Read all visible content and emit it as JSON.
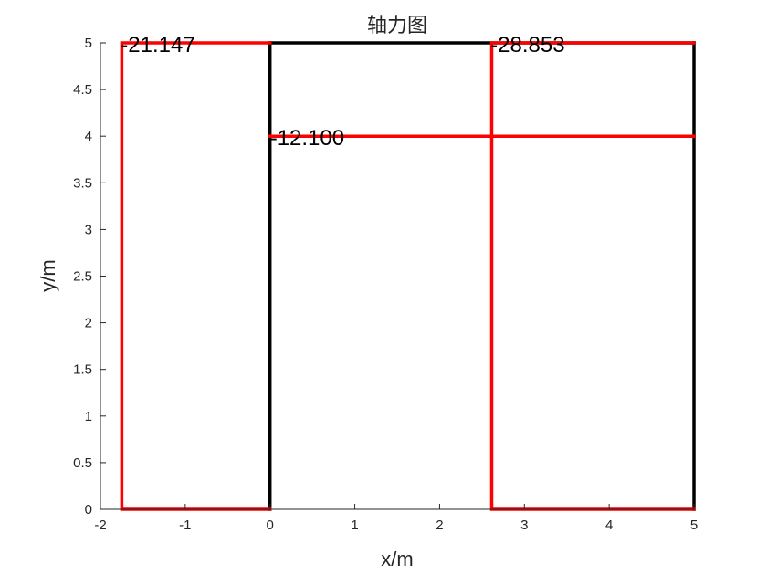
{
  "chart_data": {
    "type": "line",
    "title": "轴力图",
    "xlabel": "x/m",
    "ylabel": "y/m",
    "xlim": [
      -2,
      5
    ],
    "ylim": [
      0,
      5
    ],
    "xticks": [
      -2,
      -1,
      0,
      1,
      2,
      3,
      4,
      5
    ],
    "xtick_labels": [
      "-2",
      "-1",
      "0",
      "1",
      "2",
      "3",
      "4",
      "5"
    ],
    "yticks": [
      0,
      0.5,
      1,
      1.5,
      2,
      2.5,
      3,
      3.5,
      4,
      4.5,
      5
    ],
    "ytick_labels": [
      "0",
      "0.5",
      "1",
      "1.5",
      "2",
      "2.5",
      "3",
      "3.5",
      "4",
      "4.5",
      "5"
    ],
    "grid": false,
    "colors": {
      "frame": "#000000",
      "diagram": "#ff0000"
    },
    "series": [
      {
        "color": "#000000",
        "x": [
          0,
          0
        ],
        "y": [
          0,
          5
        ]
      },
      {
        "color": "#000000",
        "x": [
          0,
          5
        ],
        "y": [
          5,
          5
        ]
      },
      {
        "color": "#000000",
        "x": [
          5,
          5
        ],
        "y": [
          0,
          5
        ]
      },
      {
        "color": "#000000",
        "x": [
          0,
          5
        ],
        "y": [
          4,
          4
        ]
      },
      {
        "color": "#ff0000",
        "x": [
          0,
          -1.748,
          -1.748,
          0
        ],
        "y": [
          0,
          0,
          5,
          5
        ]
      },
      {
        "color": "#ff0000",
        "x": [
          5,
          2.615,
          2.615,
          5
        ],
        "y": [
          0,
          0,
          5,
          5
        ]
      },
      {
        "color": "#ff0000",
        "x": [
          0,
          0,
          5,
          5
        ],
        "y": [
          4,
          4,
          4,
          4
        ]
      }
    ],
    "annotations": [
      {
        "text": "-21.147",
        "x": -1.76,
        "y": 5
      },
      {
        "text": "-12.100",
        "x": 0.0,
        "y": 4
      },
      {
        "text": "-28.853",
        "x": 2.6,
        "y": 5
      }
    ]
  }
}
